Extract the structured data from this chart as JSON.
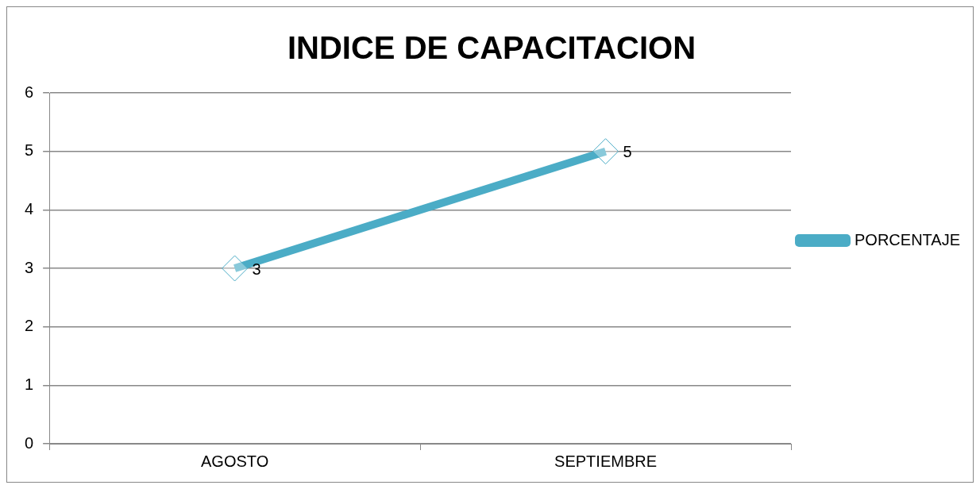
{
  "chart_data": {
    "type": "line",
    "title": "INDICE DE CAPACITACION",
    "categories": [
      "AGOSTO",
      "SEPTIEMBRE"
    ],
    "series": [
      {
        "name": "PORCENTAJE",
        "color": "#4bacc6",
        "values": [
          3,
          5
        ]
      }
    ],
    "ylim": [
      0,
      6
    ],
    "yticks": [
      0,
      1,
      2,
      3,
      4,
      5,
      6
    ],
    "grid": "y",
    "legend": "right",
    "marker": "diamond",
    "line_style": "solid",
    "data_labels": true
  }
}
